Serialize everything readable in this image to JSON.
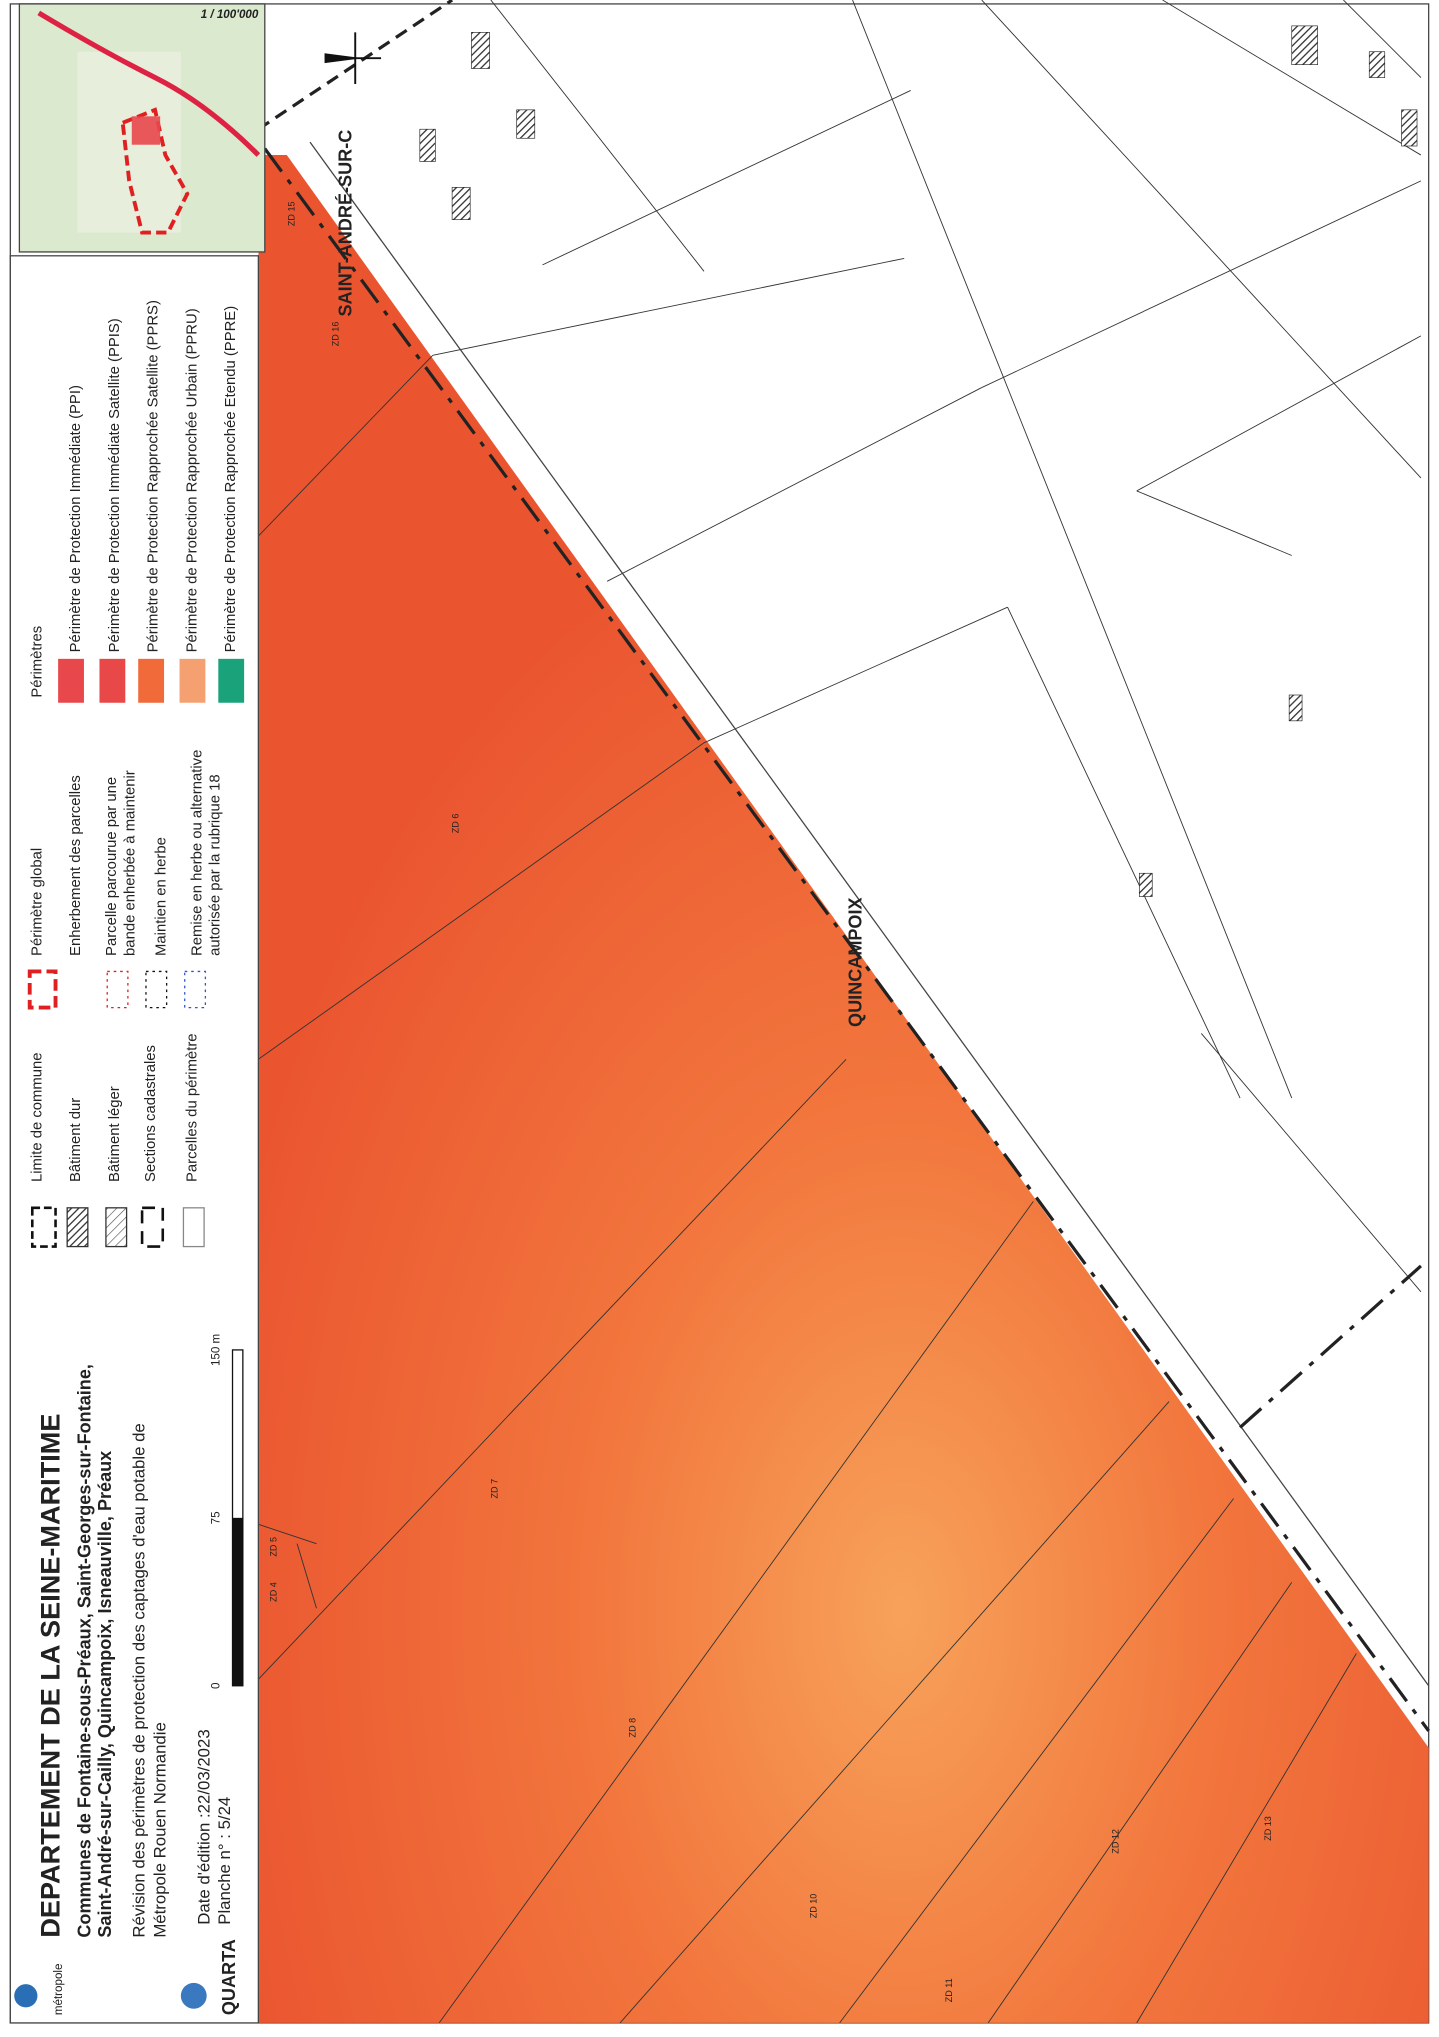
{
  "header": {
    "title": "DEPARTEMENT DE LA SEINE-MARITIME",
    "communes": [
      "Communes de Fontaine-sous-Préaux, Saint-Georges-sur-Fontaine,",
      "Saint-André-sur-Cailly, Quincampoix, Isneauville, Préaux"
    ],
    "description": [
      "Révision des périmètres de protection des captages d'eau potable de",
      "Métropole Rouen Normandie"
    ],
    "date": "Date d'édition :22/03/2023",
    "sheet": "Planche n° : 5/24",
    "logos": [
      "métropole",
      "QUARTA"
    ]
  },
  "scale_bar": {
    "labels": [
      "0",
      "75",
      "150 m"
    ],
    "ratio": "1 / 100'000"
  },
  "legend": {
    "column1": [
      "Limite de commune",
      "Bâtiment dur",
      "Bâtiment léger",
      "Sections cadastrales",
      "Parcelles du périmètre"
    ],
    "column2": [
      "Périmètre global",
      "Enherbement des parcelles",
      [
        "Parcelle parcourue par une",
        "bande enherbée à maintenir"
      ],
      "Maintien en herbe",
      [
        "Remise en herbe ou alternative",
        "autorisée par la rubrique 18"
      ]
    ],
    "perimeters_title": "Périmètres",
    "perimeters": [
      "Périmètre de Protection Immédiate (PPI)",
      "Périmètre de Protection Immédiate Satellite (PPIS)",
      "Périmètre de Protection Rapprochée Satellite (PPRS)",
      "Périmètre de Protection Rapprochée Urbain (PPRU)",
      "Périmètre de Protection Rapprochée Etendu (PPRE)"
    ]
  },
  "map": {
    "communes": [
      "SAINT-ANDRÉ-SUR-C",
      "QUINCAMPOIX"
    ],
    "parcels": [
      "ZD 15",
      "ZD 16",
      "ZD 6",
      "ZD 7",
      "ZD 5",
      "ZD 4",
      "ZD 8",
      "ZD 10",
      "ZD 11",
      "ZD 12",
      "ZD 13"
    ]
  }
}
